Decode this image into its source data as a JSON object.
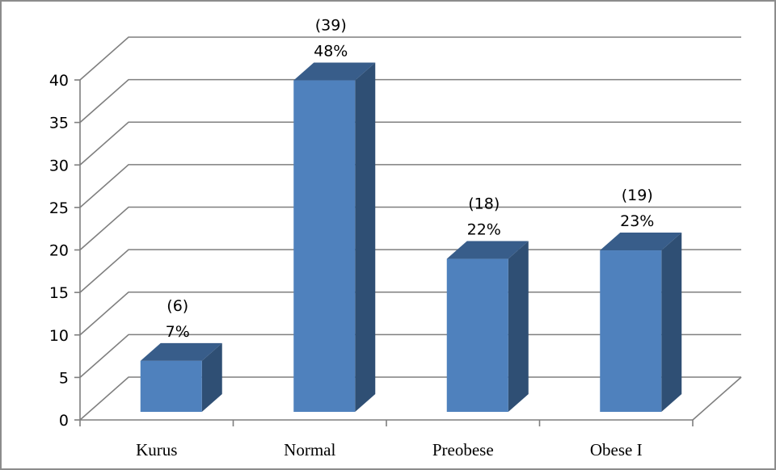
{
  "chart_data": {
    "type": "bar",
    "title": "",
    "xlabel": "",
    "ylabel": "",
    "categories": [
      "Kurus",
      "Normal",
      "Preobese",
      "Obese I"
    ],
    "values": [
      6,
      39,
      18,
      19
    ],
    "data_labels": [
      {
        "count": "(6)",
        "percent": "7%"
      },
      {
        "count": "(39)",
        "percent": "48%"
      },
      {
        "count": "(18)",
        "percent": "22%"
      },
      {
        "count": "(19)",
        "percent": "23%"
      }
    ],
    "ylim": [
      0,
      40
    ],
    "yticks": [
      0,
      5,
      10,
      15,
      20,
      25,
      30,
      35,
      40
    ],
    "grid": true,
    "legend": "none",
    "style": "3d-column",
    "colors": {
      "bar_front": "#4f81bd",
      "bar_top": "#385d8a",
      "bar_side": "#2f4f74",
      "grid": "#7f7f7f"
    }
  }
}
